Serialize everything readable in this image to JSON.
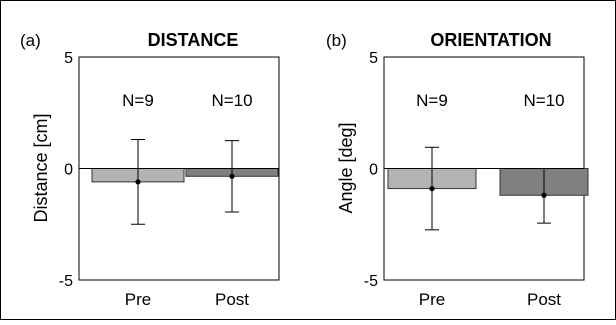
{
  "chart_data": [
    {
      "type": "bar",
      "panel_label": "(a)",
      "title": "DISTANCE",
      "ylabel": "Distance [cm]",
      "xlabel": "",
      "ylim": [
        -5,
        5
      ],
      "yticks": [
        "5",
        "0",
        "-5"
      ],
      "grid": false,
      "categories": [
        "Pre",
        "Post"
      ],
      "values": [
        -0.6,
        -0.35
      ],
      "error_low": [
        -2.5,
        -1.95
      ],
      "error_high": [
        1.3,
        1.25
      ],
      "n_labels": [
        "N=9",
        "N=10"
      ],
      "colors": [
        "#b3b3b3",
        "#808080"
      ]
    },
    {
      "type": "bar",
      "panel_label": "(b)",
      "title": "ORIENTATION",
      "ylabel": "Angle [deg]",
      "xlabel": "",
      "ylim": [
        -5,
        5
      ],
      "yticks": [
        "5",
        "0",
        "-5"
      ],
      "grid": false,
      "categories": [
        "Pre",
        "Post"
      ],
      "values": [
        -0.9,
        -1.2
      ],
      "error_low": [
        -2.75,
        -2.45
      ],
      "error_high": [
        0.95,
        0.0
      ],
      "n_labels": [
        "N=9",
        "N=10"
      ],
      "colors": [
        "#b3b3b3",
        "#808080"
      ]
    }
  ]
}
